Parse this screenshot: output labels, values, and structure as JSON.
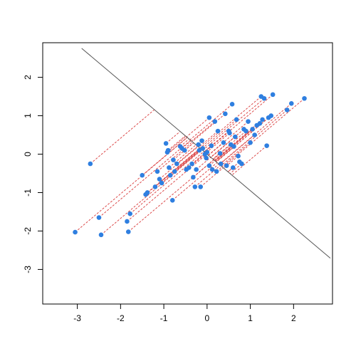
{
  "chart_data": {
    "type": "scatter",
    "title": "",
    "xlabel": "",
    "ylabel": "",
    "xlim": [
      -3.8,
      2.9
    ],
    "ylim": [
      -3.9,
      2.9
    ],
    "x_ticks": [
      -3,
      -2,
      -1,
      0,
      1,
      2
    ],
    "y_ticks": [
      -3,
      -2,
      -1,
      0,
      1,
      2
    ],
    "x_tick_labels": [
      "-3",
      "-2",
      "-1",
      "0",
      "1",
      "2"
    ],
    "y_tick_labels": [
      "-3",
      "-2",
      "-1",
      "0",
      "1",
      "2"
    ],
    "grid": false,
    "colors": {
      "points": "#2f7fe0",
      "projections": "#d93a3a",
      "line": "#555555"
    },
    "line": {
      "slope": -0.95,
      "intercept": 0.0,
      "x_range": [
        -2.9,
        2.85
      ]
    },
    "projection_direction": [
      1,
      0.95
    ],
    "points": {
      "x": [
        -3.05,
        -2.7,
        -2.5,
        -2.45,
        -1.85,
        -1.82,
        -1.78,
        -1.5,
        -1.42,
        -1.38,
        -1.2,
        -1.15,
        -1.1,
        -1.05,
        -0.95,
        -0.92,
        -0.9,
        -0.88,
        -0.85,
        -0.8,
        -0.78,
        -0.75,
        -0.7,
        -0.62,
        -0.58,
        -0.52,
        -0.48,
        -0.42,
        -0.35,
        -0.32,
        -0.28,
        -0.25,
        -0.2,
        -0.18,
        -0.15,
        -0.12,
        -0.1,
        -0.05,
        -0.02,
        0.0,
        0.05,
        0.05,
        0.1,
        0.12,
        0.18,
        0.22,
        0.25,
        0.3,
        0.32,
        0.38,
        0.42,
        0.45,
        0.5,
        0.52,
        0.55,
        0.58,
        0.6,
        0.62,
        0.65,
        0.68,
        0.72,
        0.75,
        0.8,
        0.85,
        0.9,
        0.95,
        1.0,
        1.05,
        1.1,
        1.15,
        1.22,
        1.25,
        1.28,
        1.32,
        1.38,
        1.42,
        1.48,
        1.52,
        1.85,
        1.95,
        2.25
      ],
      "y": [
        -2.03,
        -0.25,
        -1.65,
        -2.1,
        -1.75,
        -2.02,
        -1.55,
        -0.55,
        -1.05,
        -1.0,
        -0.85,
        -0.45,
        -0.65,
        -0.75,
        0.28,
        0.05,
        0.1,
        -0.35,
        -0.55,
        -1.2,
        -0.15,
        -0.45,
        -0.25,
        0.2,
        0.15,
        0.1,
        -0.4,
        -0.35,
        -0.25,
        -0.6,
        -0.85,
        -0.4,
        0.25,
        0.1,
        -0.85,
        0.35,
        0.15,
        0.0,
        -0.1,
        0.05,
        0.95,
        -0.3,
        0.22,
        -0.4,
        0.85,
        -0.45,
        0.6,
        0.02,
        -0.25,
        0.3,
        1.05,
        -0.3,
        0.6,
        0.55,
        0.25,
        1.3,
        -0.35,
        0.2,
        0.45,
        0.9,
        -0.05,
        -0.2,
        -0.25,
        0.65,
        0.6,
        0.85,
        0.3,
        0.65,
        0.5,
        0.75,
        0.8,
        1.5,
        0.9,
        1.45,
        0.22,
        0.95,
        1.0,
        1.55,
        1.15,
        1.32,
        1.45
      ]
    }
  }
}
